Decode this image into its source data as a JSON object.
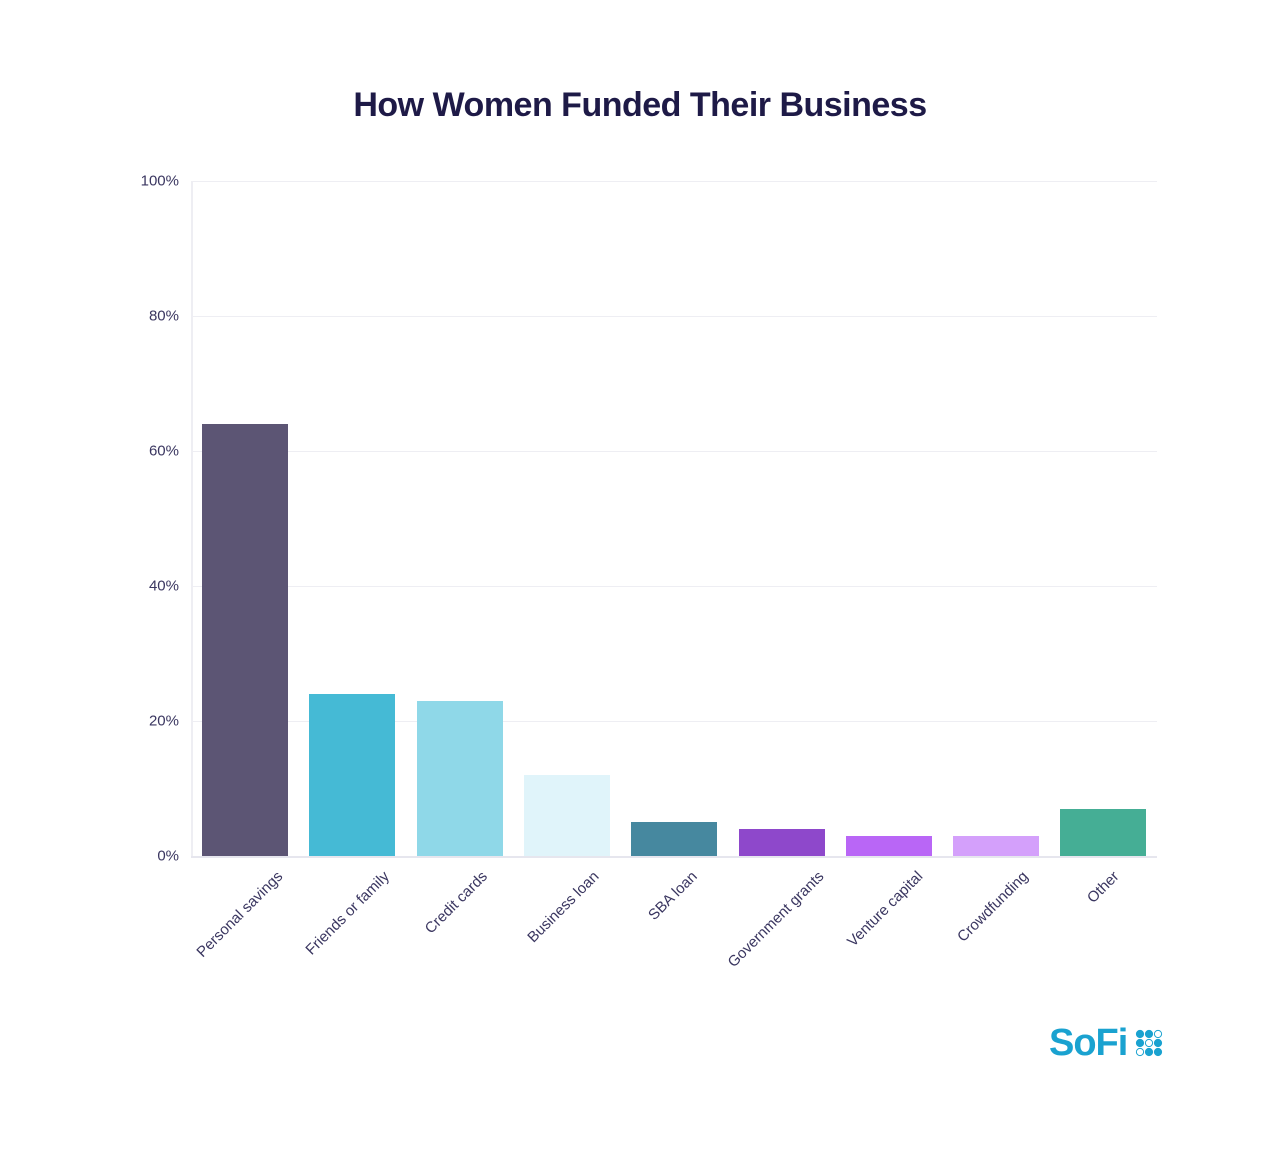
{
  "chart_data": {
    "type": "bar",
    "title": "How Women Funded Their Business",
    "xlabel": "",
    "ylabel": "",
    "ylim": [
      0,
      100
    ],
    "yticks": [
      "0%",
      "20%",
      "40%",
      "60%",
      "80%",
      "100%"
    ],
    "grid": true,
    "legend": null,
    "categories": [
      "Personal savings",
      "Friends or family",
      "Credit cards",
      "Business loan",
      "SBA loan",
      "Government grants",
      "Venture capital",
      "Crowdfunding",
      "Other"
    ],
    "values": [
      64,
      24,
      23,
      12,
      5,
      4,
      3,
      3,
      7
    ],
    "colors": [
      "#5c5574",
      "#45bad5",
      "#8fd8e8",
      "#e0f4fa",
      "#46889f",
      "#8e48cb",
      "#b966f6",
      "#d4a0fb",
      "#45ae95"
    ]
  },
  "brand": {
    "logo_text": "SoFi",
    "logo_color": "#1aa2d0",
    "title_color": "#1e1a47"
  }
}
